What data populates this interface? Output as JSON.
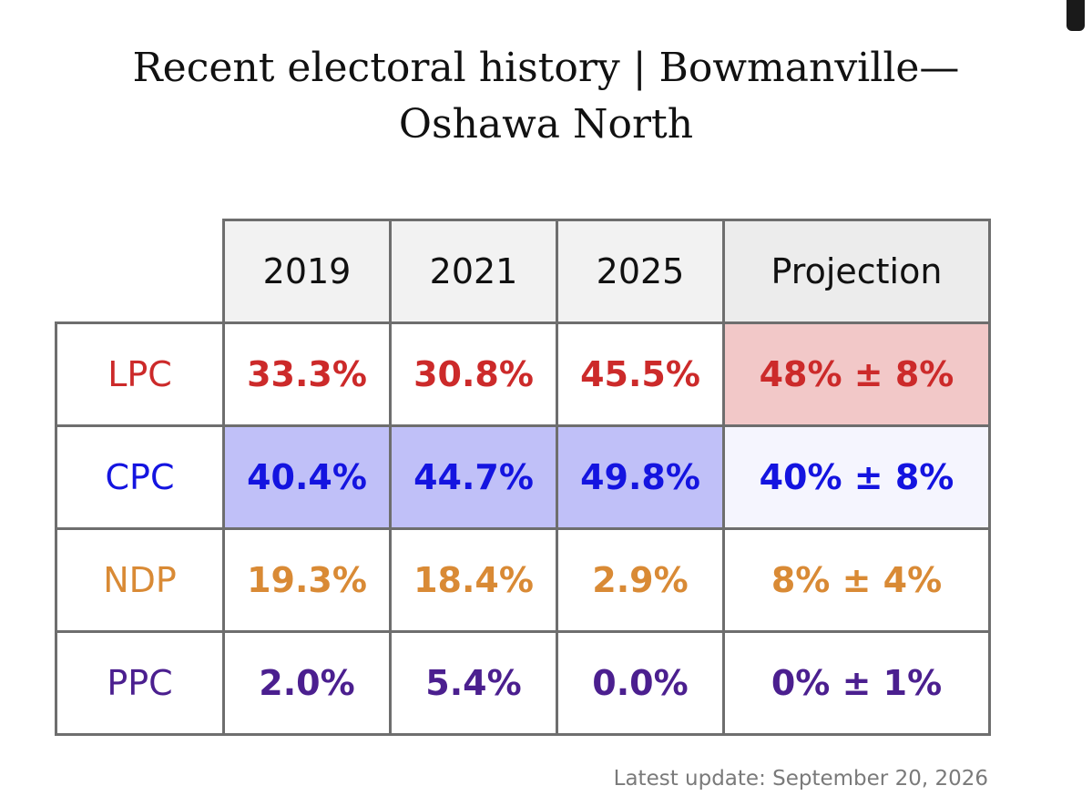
{
  "title_line1": "Recent electoral history | Bowmanville—",
  "title_line2": "Oshawa North",
  "footer": "Latest update: September 20, 2026",
  "chart_data": {
    "type": "table",
    "title": "Recent electoral history | Bowmanville—Oshawa North",
    "columns": [
      "2019",
      "2021",
      "2025",
      "Projection"
    ],
    "rows": [
      {
        "party": "LPC",
        "color": "#cc2a2a",
        "cells": [
          "33.3%",
          "30.8%",
          "45.5%",
          "48% ± 8%"
        ],
        "values": [
          33.3,
          30.8,
          45.5,
          48
        ],
        "projection_margin": 8,
        "highlight": [
          null,
          null,
          null,
          "#f2c8c8"
        ]
      },
      {
        "party": "CPC",
        "color": "#1414e0",
        "cells": [
          "40.4%",
          "44.7%",
          "49.8%",
          "40% ± 8%"
        ],
        "values": [
          40.4,
          44.7,
          49.8,
          40
        ],
        "projection_margin": 8,
        "highlight": [
          "#c0c0f8",
          "#c0c0f8",
          "#c0c0f8",
          "#f5f5fe"
        ]
      },
      {
        "party": "NDP",
        "color": "#d98a35",
        "cells": [
          "19.3%",
          "18.4%",
          "2.9%",
          "8% ± 4%"
        ],
        "values": [
          19.3,
          18.4,
          2.9,
          8
        ],
        "projection_margin": 4,
        "highlight": [
          null,
          null,
          null,
          null
        ]
      },
      {
        "party": "PPC",
        "color": "#4b1f8f",
        "cells": [
          "2.0%",
          "5.4%",
          "0.0%",
          "0% ± 1%"
        ],
        "values": [
          2.0,
          5.4,
          0.0,
          0
        ],
        "projection_margin": 1,
        "highlight": [
          null,
          null,
          null,
          null
        ]
      }
    ]
  }
}
